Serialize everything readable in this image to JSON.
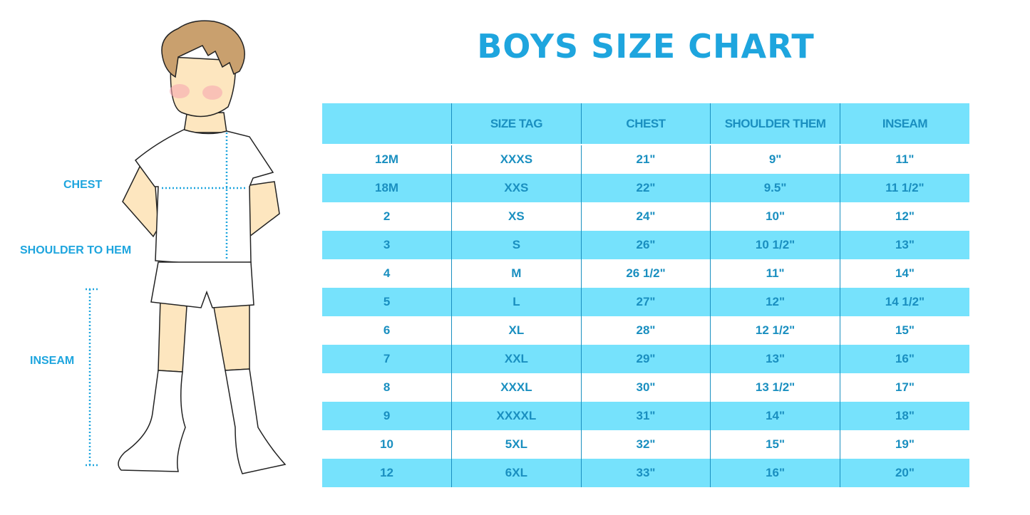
{
  "title": "BOYS SIZE CHART",
  "figure_labels": {
    "chest": "CHEST",
    "shoulder": "SHOULDER TO HEM",
    "inseam": "INSEAM"
  },
  "colors": {
    "accent": "#1ea5de",
    "row_highlight": "#76e2fc",
    "text": "#1a8fc0"
  },
  "table": {
    "headers": [
      "",
      "SIZE TAG",
      "CHEST",
      "SHOULDER THEM",
      "INSEAM"
    ],
    "rows": [
      [
        "12M",
        "XXXS",
        "21\"",
        "9\"",
        "11\""
      ],
      [
        "18M",
        "XXS",
        "22\"",
        "9.5\"",
        "11 1/2\""
      ],
      [
        "2",
        "XS",
        "24\"",
        "10\"",
        "12\""
      ],
      [
        "3",
        "S",
        "26\"",
        "10 1/2\"",
        "13\""
      ],
      [
        "4",
        "M",
        "26 1/2\"",
        "11\"",
        "14\""
      ],
      [
        "5",
        "L",
        "27\"",
        "12\"",
        "14 1/2\""
      ],
      [
        "6",
        "XL",
        "28\"",
        "12 1/2\"",
        "15\""
      ],
      [
        "7",
        "XXL",
        "29\"",
        "13\"",
        "16\""
      ],
      [
        "8",
        "XXXL",
        "30\"",
        "13 1/2\"",
        "17\""
      ],
      [
        "9",
        "XXXXL",
        "31\"",
        "14\"",
        "18\""
      ],
      [
        "10",
        "5XL",
        "32\"",
        "15\"",
        "19\""
      ],
      [
        "12",
        "6XL",
        "33\"",
        "16\"",
        "20\""
      ]
    ]
  }
}
